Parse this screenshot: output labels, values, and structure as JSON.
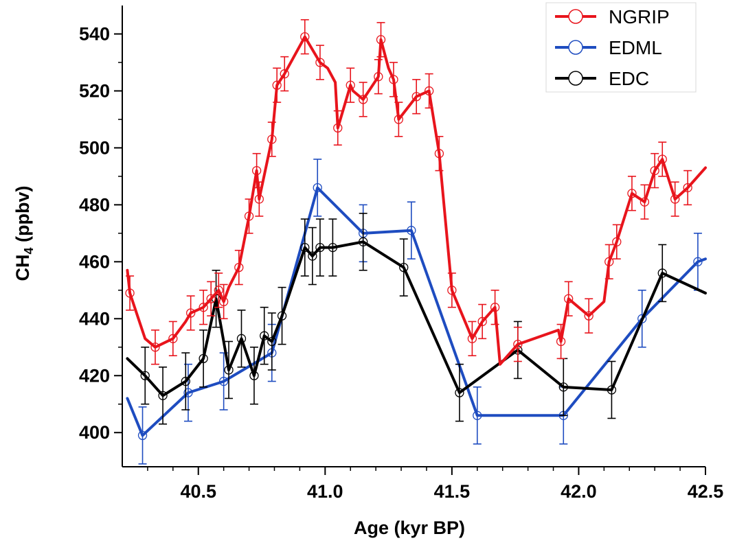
{
  "chart_data": {
    "type": "line",
    "xlabel": "Age (kyr BP)",
    "ylabel_main": "CH",
    "ylabel_sub": "4",
    "ylabel_unit": " (ppbv)",
    "xlim": [
      40.2,
      42.5
    ],
    "ylim": [
      388,
      550
    ],
    "xticks": [
      40.5,
      41.0,
      41.5,
      42.0,
      42.5
    ],
    "xtick_labels": [
      "40.5",
      "41.0",
      "41.5",
      "42.0",
      "42.5"
    ],
    "yticks": [
      400,
      420,
      440,
      460,
      480,
      500,
      520,
      540
    ],
    "ytick_labels": [
      "400",
      "420",
      "440",
      "460",
      "480",
      "500",
      "520",
      "540"
    ],
    "legend_position": "top-right",
    "series": [
      {
        "name": "NGRIP",
        "color": "#e8141c",
        "error": 6,
        "points": [
          [
            40.22,
            457,
            false
          ],
          [
            40.23,
            449,
            true
          ],
          [
            40.29,
            433,
            false
          ],
          [
            40.33,
            430,
            true
          ],
          [
            40.4,
            433,
            true
          ],
          [
            40.45,
            439,
            false
          ],
          [
            40.47,
            442,
            true
          ],
          [
            40.52,
            444,
            true
          ],
          [
            40.55,
            447,
            true
          ],
          [
            40.58,
            450,
            true
          ],
          [
            40.6,
            446,
            true
          ],
          [
            40.62,
            451,
            false
          ],
          [
            40.66,
            458,
            true
          ],
          [
            40.7,
            476,
            true
          ],
          [
            40.73,
            492,
            true
          ],
          [
            40.74,
            482,
            true
          ],
          [
            40.79,
            503,
            true
          ],
          [
            40.81,
            522,
            true
          ],
          [
            40.84,
            526,
            true
          ],
          [
            40.92,
            539,
            true
          ],
          [
            40.98,
            530,
            true
          ],
          [
            41.01,
            528,
            false
          ],
          [
            41.04,
            523,
            false
          ],
          [
            41.05,
            507,
            true
          ],
          [
            41.1,
            522,
            true
          ],
          [
            41.11,
            520,
            false
          ],
          [
            41.15,
            517,
            true
          ],
          [
            41.21,
            525,
            true
          ],
          [
            41.22,
            538,
            true
          ],
          [
            41.25,
            528,
            false
          ],
          [
            41.27,
            524,
            true
          ],
          [
            41.29,
            510,
            true
          ],
          [
            41.36,
            518,
            true
          ],
          [
            41.41,
            520,
            true
          ],
          [
            41.45,
            498,
            true
          ],
          [
            41.5,
            450,
            true
          ],
          [
            41.58,
            433,
            true
          ],
          [
            41.62,
            439,
            true
          ],
          [
            41.67,
            444,
            true
          ],
          [
            41.69,
            424,
            false
          ],
          [
            41.76,
            431,
            true
          ],
          [
            41.92,
            436,
            false
          ],
          [
            41.93,
            432,
            true
          ],
          [
            41.96,
            447,
            true
          ],
          [
            42.04,
            441,
            true
          ],
          [
            42.1,
            446,
            false
          ],
          [
            42.12,
            460,
            true
          ],
          [
            42.15,
            467,
            true
          ],
          [
            42.21,
            484,
            true
          ],
          [
            42.26,
            481,
            true
          ],
          [
            42.3,
            492,
            true
          ],
          [
            42.33,
            496,
            true
          ],
          [
            42.38,
            482,
            true
          ],
          [
            42.43,
            486,
            true
          ],
          [
            42.5,
            493,
            false
          ]
        ]
      },
      {
        "name": "EDML",
        "color": "#1e4cc0",
        "error": 10,
        "points": [
          [
            40.22,
            412,
            false
          ],
          [
            40.28,
            399,
            true
          ],
          [
            40.46,
            414,
            true
          ],
          [
            40.6,
            418,
            true
          ],
          [
            40.79,
            428,
            true
          ],
          [
            40.97,
            486,
            true
          ],
          [
            41.15,
            470,
            true
          ],
          [
            41.34,
            471,
            true
          ],
          [
            41.6,
            406,
            true
          ],
          [
            41.94,
            406,
            true
          ],
          [
            42.25,
            440,
            true
          ],
          [
            42.47,
            460,
            true
          ],
          [
            42.5,
            461,
            false
          ]
        ]
      },
      {
        "name": "EDC",
        "color": "#000000",
        "error": 10,
        "points": [
          [
            40.22,
            426,
            false
          ],
          [
            40.29,
            420,
            true
          ],
          [
            40.36,
            413,
            true
          ],
          [
            40.45,
            418,
            true
          ],
          [
            40.52,
            426,
            true
          ],
          [
            40.57,
            447,
            true
          ],
          [
            40.62,
            422,
            true
          ],
          [
            40.67,
            433,
            true
          ],
          [
            40.72,
            420,
            true
          ],
          [
            40.76,
            434,
            true
          ],
          [
            40.79,
            432,
            true
          ],
          [
            40.83,
            441,
            true
          ],
          [
            40.92,
            465,
            true
          ],
          [
            40.95,
            462,
            true
          ],
          [
            40.98,
            465,
            true
          ],
          [
            41.03,
            465,
            true
          ],
          [
            41.15,
            467,
            true
          ],
          [
            41.31,
            458,
            true
          ],
          [
            41.53,
            414,
            true
          ],
          [
            41.76,
            429,
            true
          ],
          [
            41.94,
            416,
            true
          ],
          [
            42.13,
            415,
            true
          ],
          [
            42.33,
            456,
            true
          ],
          [
            42.5,
            449,
            false
          ]
        ]
      }
    ]
  }
}
